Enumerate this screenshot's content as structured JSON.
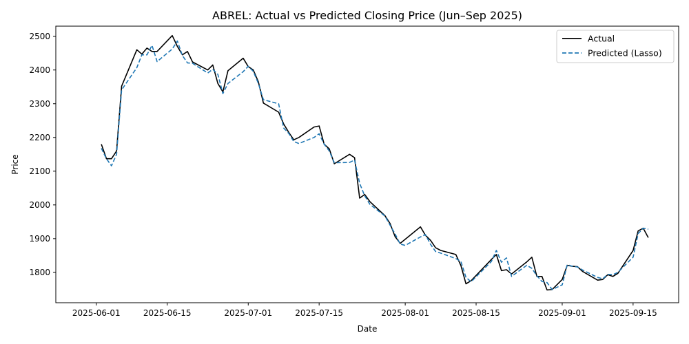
{
  "chart_data": {
    "type": "line",
    "title": "ABREL: Actual vs Predicted Closing Price (Jun–Sep 2025)",
    "xlabel": "Date",
    "ylabel": "Price",
    "xlim": [
      "2025-05-24",
      "2025-09-24"
    ],
    "ylim": [
      1710,
      2530
    ],
    "x_ticks": [
      "2025-06-01",
      "2025-06-15",
      "2025-07-01",
      "2025-07-15",
      "2025-08-01",
      "2025-08-15",
      "2025-09-01",
      "2025-09-15"
    ],
    "y_ticks": [
      1800,
      1900,
      2000,
      2100,
      2200,
      2300,
      2400,
      2500
    ],
    "grid": false,
    "legend_position": "top-right",
    "series": [
      {
        "name": "Actual",
        "color": "#000000",
        "style": "solid",
        "points": [
          [
            "2025-06-02",
            2180
          ],
          [
            "2025-06-03",
            2137
          ],
          [
            "2025-06-04",
            2137
          ],
          [
            "2025-06-05",
            2160
          ],
          [
            "2025-06-06",
            2352
          ],
          [
            "2025-06-09",
            2460
          ],
          [
            "2025-06-10",
            2447
          ],
          [
            "2025-06-11",
            2465
          ],
          [
            "2025-06-12",
            2455
          ],
          [
            "2025-06-13",
            2455
          ],
          [
            "2025-06-16",
            2502
          ],
          [
            "2025-06-17",
            2470
          ],
          [
            "2025-06-18",
            2445
          ],
          [
            "2025-06-19",
            2455
          ],
          [
            "2025-06-20",
            2424
          ],
          [
            "2025-06-23",
            2400
          ],
          [
            "2025-06-24",
            2415
          ],
          [
            "2025-06-25",
            2360
          ],
          [
            "2025-06-26",
            2335
          ],
          [
            "2025-06-27",
            2398
          ],
          [
            "2025-06-30",
            2435
          ],
          [
            "2025-07-01",
            2410
          ],
          [
            "2025-07-02",
            2400
          ],
          [
            "2025-07-03",
            2365
          ],
          [
            "2025-07-04",
            2302
          ],
          [
            "2025-07-07",
            2275
          ],
          [
            "2025-07-08",
            2240
          ],
          [
            "2025-07-09",
            2215
          ],
          [
            "2025-07-10",
            2193
          ],
          [
            "2025-07-11",
            2200
          ],
          [
            "2025-07-14",
            2231
          ],
          [
            "2025-07-15",
            2234
          ],
          [
            "2025-07-16",
            2180
          ],
          [
            "2025-07-17",
            2166
          ],
          [
            "2025-07-18",
            2122
          ],
          [
            "2025-07-21",
            2150
          ],
          [
            "2025-07-22",
            2140
          ],
          [
            "2025-07-23",
            2020
          ],
          [
            "2025-07-24",
            2031
          ],
          [
            "2025-07-25",
            2010
          ],
          [
            "2025-07-28",
            1968
          ],
          [
            "2025-07-29",
            1945
          ],
          [
            "2025-07-30",
            1906
          ],
          [
            "2025-07-31",
            1886
          ],
          [
            "2025-08-04",
            1935
          ],
          [
            "2025-08-05",
            1910
          ],
          [
            "2025-08-06",
            1895
          ],
          [
            "2025-08-07",
            1873
          ],
          [
            "2025-08-08",
            1865
          ],
          [
            "2025-08-11",
            1853
          ],
          [
            "2025-08-12",
            1820
          ],
          [
            "2025-08-13",
            1766
          ],
          [
            "2025-08-14",
            1775
          ],
          [
            "2025-08-18",
            1838
          ],
          [
            "2025-08-19",
            1853
          ],
          [
            "2025-08-20",
            1805
          ],
          [
            "2025-08-21",
            1808
          ],
          [
            "2025-08-22",
            1795
          ],
          [
            "2025-08-25",
            1831
          ],
          [
            "2025-08-26",
            1845
          ],
          [
            "2025-08-27",
            1788
          ],
          [
            "2025-08-28",
            1788
          ],
          [
            "2025-08-29",
            1748
          ],
          [
            "2025-08-30",
            1749
          ],
          [
            "2025-09-01",
            1779
          ],
          [
            "2025-09-02",
            1821
          ],
          [
            "2025-09-03",
            1818
          ],
          [
            "2025-09-04",
            1817
          ],
          [
            "2025-09-05",
            1803
          ],
          [
            "2025-09-08",
            1777
          ],
          [
            "2025-09-09",
            1779
          ],
          [
            "2025-09-10",
            1793
          ],
          [
            "2025-09-11",
            1788
          ],
          [
            "2025-09-12",
            1797
          ],
          [
            "2025-09-15",
            1865
          ],
          [
            "2025-09-16",
            1923
          ],
          [
            "2025-09-17",
            1931
          ],
          [
            "2025-09-18",
            1903
          ]
        ]
      },
      {
        "name": "Predicted (Lasso)",
        "color": "#1f77b4",
        "style": "dashed",
        "points": [
          [
            "2025-06-02",
            2168
          ],
          [
            "2025-06-03",
            2137
          ],
          [
            "2025-06-04",
            2116
          ],
          [
            "2025-06-05",
            2150
          ],
          [
            "2025-06-06",
            2341
          ],
          [
            "2025-06-09",
            2407
          ],
          [
            "2025-06-10",
            2445
          ],
          [
            "2025-06-11",
            2445
          ],
          [
            "2025-06-12",
            2473
          ],
          [
            "2025-06-13",
            2425
          ],
          [
            "2025-06-16",
            2462
          ],
          [
            "2025-06-17",
            2486
          ],
          [
            "2025-06-18",
            2443
          ],
          [
            "2025-06-19",
            2421
          ],
          [
            "2025-06-20",
            2420
          ],
          [
            "2025-06-23",
            2391
          ],
          [
            "2025-06-24",
            2402
          ],
          [
            "2025-06-25",
            2387
          ],
          [
            "2025-06-26",
            2330
          ],
          [
            "2025-06-27",
            2360
          ],
          [
            "2025-06-30",
            2395
          ],
          [
            "2025-07-01",
            2411
          ],
          [
            "2025-07-02",
            2396
          ],
          [
            "2025-07-03",
            2360
          ],
          [
            "2025-07-04",
            2312
          ],
          [
            "2025-07-07",
            2300
          ],
          [
            "2025-07-08",
            2228
          ],
          [
            "2025-07-09",
            2212
          ],
          [
            "2025-07-10",
            2188
          ],
          [
            "2025-07-11",
            2182
          ],
          [
            "2025-07-14",
            2200
          ],
          [
            "2025-07-15",
            2211
          ],
          [
            "2025-07-16",
            2180
          ],
          [
            "2025-07-17",
            2160
          ],
          [
            "2025-07-18",
            2125
          ],
          [
            "2025-07-21",
            2126
          ],
          [
            "2025-07-22",
            2133
          ],
          [
            "2025-07-23",
            2064
          ],
          [
            "2025-07-24",
            2027
          ],
          [
            "2025-07-25",
            2002
          ],
          [
            "2025-07-28",
            1967
          ],
          [
            "2025-07-29",
            1940
          ],
          [
            "2025-07-30",
            1914
          ],
          [
            "2025-07-31",
            1884
          ],
          [
            "2025-08-01",
            1880
          ],
          [
            "2025-08-04",
            1905
          ],
          [
            "2025-08-05",
            1912
          ],
          [
            "2025-08-06",
            1883
          ],
          [
            "2025-08-07",
            1862
          ],
          [
            "2025-08-08",
            1857
          ],
          [
            "2025-08-11",
            1841
          ],
          [
            "2025-08-12",
            1832
          ],
          [
            "2025-08-13",
            1785
          ],
          [
            "2025-08-14",
            1772
          ],
          [
            "2025-08-18",
            1832
          ],
          [
            "2025-08-19",
            1865
          ],
          [
            "2025-08-20",
            1830
          ],
          [
            "2025-08-21",
            1843
          ],
          [
            "2025-08-22",
            1788
          ],
          [
            "2025-08-25",
            1821
          ],
          [
            "2025-08-26",
            1812
          ],
          [
            "2025-08-27",
            1790
          ],
          [
            "2025-08-28",
            1773
          ],
          [
            "2025-08-29",
            1770
          ],
          [
            "2025-08-30",
            1749
          ],
          [
            "2025-09-01",
            1763
          ],
          [
            "2025-09-02",
            1823
          ],
          [
            "2025-09-03",
            1818
          ],
          [
            "2025-09-04",
            1816
          ],
          [
            "2025-09-05",
            1807
          ],
          [
            "2025-09-08",
            1785
          ],
          [
            "2025-09-09",
            1781
          ],
          [
            "2025-09-10",
            1794
          ],
          [
            "2025-09-11",
            1793
          ],
          [
            "2025-09-12",
            1800
          ],
          [
            "2025-09-15",
            1845
          ],
          [
            "2025-09-16",
            1915
          ],
          [
            "2025-09-17",
            1931
          ],
          [
            "2025-09-18",
            1928
          ]
        ]
      }
    ]
  }
}
